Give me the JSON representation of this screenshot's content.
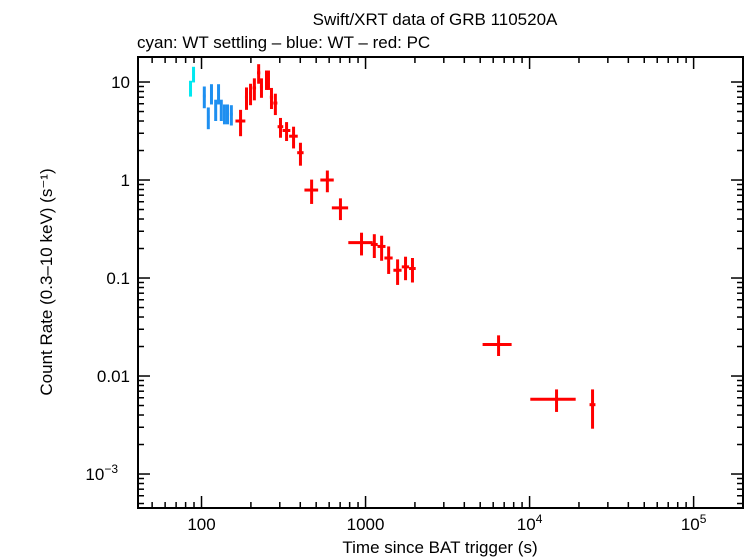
{
  "chart_data": {
    "type": "scatter",
    "title": "Swift/XRT data of GRB 110520A",
    "subtitle": "cyan: WT settling – blue: WT – red: PC",
    "xlabel": "Time since BAT trigger (s)",
    "ylabel": "Count Rate (0.3–10 keV) (s⁻¹)",
    "xscale": "log",
    "yscale": "log",
    "xlim": [
      41,
      200000
    ],
    "ylim": [
      0.00045,
      18
    ],
    "grid": false,
    "x_ticks": [
      {
        "v": 100,
        "label": "100"
      },
      {
        "v": 1000,
        "label": "1000"
      },
      {
        "v": 10000,
        "label": "10",
        "exp": "4"
      },
      {
        "v": 100000,
        "label": "10",
        "exp": "5"
      }
    ],
    "y_ticks": [
      {
        "v": 0.001,
        "label": "10",
        "exp": "−3"
      },
      {
        "v": 0.01,
        "label": "0.01"
      },
      {
        "v": 0.1,
        "label": "0.1"
      },
      {
        "v": 1,
        "label": "1"
      },
      {
        "v": 10,
        "label": "10"
      }
    ],
    "series": [
      {
        "mode": "WT settling",
        "color": "#00e8f0",
        "points": [
          [
            85.7,
            1.2,
            8.7,
            1.6
          ],
          [
            89.4,
            1.2,
            12.1,
            2.2
          ]
        ]
      },
      {
        "mode": "WT",
        "color": "#1e8ff0",
        "points": [
          [
            104,
            2,
            7.2,
            1.8
          ],
          [
            110,
            2,
            4.4,
            1.1
          ],
          [
            115,
            2,
            7.7,
            1.8
          ],
          [
            122,
            2,
            5.3,
            1.3
          ],
          [
            127,
            2,
            7.7,
            1.8
          ],
          [
            132,
            2,
            5.3,
            1.3
          ],
          [
            138,
            2,
            4.8,
            1.1
          ],
          [
            144,
            2,
            4.8,
            1.1
          ],
          [
            152,
            3,
            4.7,
            1.1
          ]
        ]
      },
      {
        "mode": "PC",
        "color": "#ff0000",
        "points": [
          [
            173,
            12,
            4.0,
            1.2
          ],
          [
            188,
            4,
            7.0,
            1.8
          ],
          [
            199,
            4,
            7.7,
            1.9
          ],
          [
            210,
            5,
            8.7,
            2.2
          ],
          [
            223,
            5,
            12.4,
            2.8
          ],
          [
            232,
            5,
            8.9,
            2.0
          ],
          [
            249,
            5,
            10.7,
            2.4
          ],
          [
            256,
            5,
            10.7,
            2.4
          ],
          [
            267,
            6,
            7.0,
            1.7
          ],
          [
            282,
            8,
            6.1,
            1.5
          ],
          [
            303,
            12,
            3.5,
            0.8
          ],
          [
            330,
            18,
            3.2,
            0.7
          ],
          [
            364,
            22,
            2.8,
            0.7
          ],
          [
            401,
            18,
            1.9,
            0.5
          ],
          [
            469,
            45,
            0.79,
            0.22
          ],
          [
            585,
            55,
            1.0,
            0.25
          ],
          [
            703,
            80,
            0.52,
            0.13
          ],
          [
            945,
            160,
            0.23,
            0.06
          ],
          [
            1131,
            55,
            0.22,
            0.06
          ],
          [
            1253,
            70,
            0.21,
            0.06
          ],
          [
            1383,
            80,
            0.16,
            0.05
          ],
          [
            1568,
            90,
            0.12,
            0.035
          ],
          [
            1753,
            90,
            0.13,
            0.035
          ],
          [
            1932,
            90,
            0.125,
            0.035
          ],
          [
            6470,
            1300,
            0.021,
            0.005
          ],
          [
            14600,
            4500,
            0.0058,
            0.0015
          ],
          [
            24200,
            1000,
            0.0051,
            0.0022
          ]
        ]
      }
    ]
  }
}
